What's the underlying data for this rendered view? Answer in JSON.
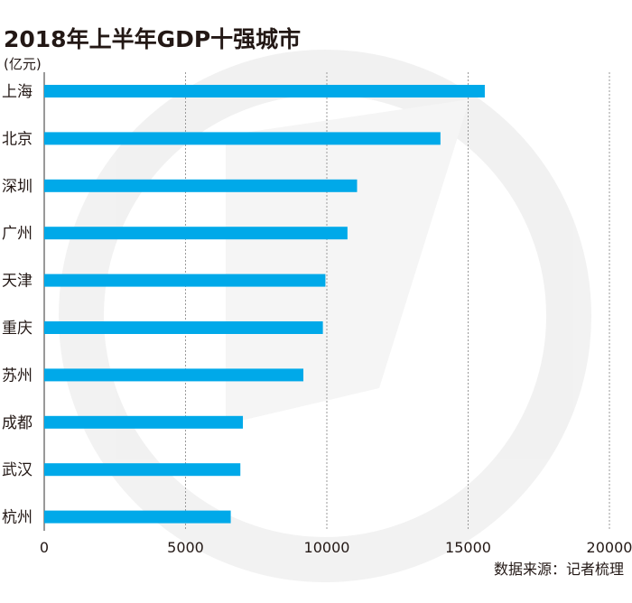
{
  "chart_data": {
    "type": "bar",
    "orientation": "horizontal",
    "title": "2018年上半年GDP十强城市",
    "unit_label": "(亿元)",
    "categories": [
      "上海",
      "北京",
      "深圳",
      "广州",
      "天津",
      "重庆",
      "苏州",
      "成都",
      "武汉",
      "杭州"
    ],
    "values": [
      15590,
      14020,
      11070,
      10730,
      9950,
      9860,
      9170,
      7030,
      6940,
      6600
    ],
    "xlim": [
      0,
      20000
    ],
    "x_ticks": [
      "0",
      "5000",
      "10000",
      "15000",
      "20000"
    ],
    "grid": true,
    "bar_color": "#00a9e9",
    "source": "数据来源：记者梳理"
  }
}
